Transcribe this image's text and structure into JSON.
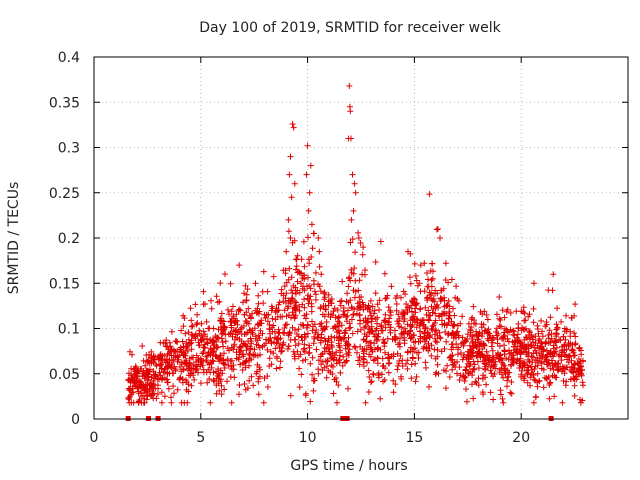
{
  "chart_data": {
    "type": "scatter",
    "title": "Day 100 of 2019, SRMTID for receiver welk",
    "xlabel": "GPS time / hours",
    "ylabel": "SRMTID / TECUs",
    "xlim": [
      0,
      25
    ],
    "ylim": [
      0,
      0.4
    ],
    "xticks": [
      0,
      5,
      10,
      15,
      20
    ],
    "xtick_labels": [
      "0",
      "5",
      "10",
      "15",
      "20"
    ],
    "yticks": [
      0,
      0.05,
      0.1,
      0.15,
      0.2,
      0.25,
      0.3,
      0.35,
      0.4
    ],
    "ytick_labels": [
      "0",
      "0.05",
      "0.1",
      "0.15",
      "0.2",
      "0.25",
      "0.3",
      "0.35",
      "0.4"
    ],
    "grid": true,
    "marker": "plus",
    "color": "#e00000",
    "generation_seed": 20190410,
    "points_per_hour": 110,
    "x_range": [
      1.6,
      22.9
    ],
    "trend": [
      [
        1.6,
        0.035
      ],
      [
        2.5,
        0.045
      ],
      [
        3.5,
        0.058
      ],
      [
        4.5,
        0.068
      ],
      [
        5.5,
        0.078
      ],
      [
        6.5,
        0.09
      ],
      [
        7.5,
        0.088
      ],
      [
        8.5,
        0.095
      ],
      [
        9.3,
        0.11
      ],
      [
        10.0,
        0.105
      ],
      [
        10.7,
        0.095
      ],
      [
        11.5,
        0.08
      ],
      [
        12.0,
        0.11
      ],
      [
        12.7,
        0.095
      ],
      [
        13.5,
        0.085
      ],
      [
        14.5,
        0.09
      ],
      [
        15.5,
        0.1
      ],
      [
        16.3,
        0.105
      ],
      [
        17.2,
        0.08
      ],
      [
        18.5,
        0.07
      ],
      [
        20.0,
        0.075
      ],
      [
        21.0,
        0.07
      ],
      [
        21.8,
        0.075
      ],
      [
        22.9,
        0.06
      ]
    ],
    "spikes": [
      {
        "x": 9.3,
        "y": 0.326
      },
      {
        "x": 9.35,
        "y": 0.322
      },
      {
        "x": 9.2,
        "y": 0.29
      },
      {
        "x": 9.15,
        "y": 0.27
      },
      {
        "x": 9.4,
        "y": 0.26
      },
      {
        "x": 9.25,
        "y": 0.245
      },
      {
        "x": 9.1,
        "y": 0.22
      },
      {
        "x": 9.2,
        "y": 0.2
      },
      {
        "x": 9.0,
        "y": 0.185
      },
      {
        "x": 10.0,
        "y": 0.302
      },
      {
        "x": 10.15,
        "y": 0.28
      },
      {
        "x": 9.95,
        "y": 0.27
      },
      {
        "x": 10.1,
        "y": 0.25
      },
      {
        "x": 10.05,
        "y": 0.23
      },
      {
        "x": 10.2,
        "y": 0.215
      },
      {
        "x": 10.3,
        "y": 0.205
      },
      {
        "x": 10.5,
        "y": 0.2
      },
      {
        "x": 10.55,
        "y": 0.185
      },
      {
        "x": 11.95,
        "y": 0.368
      },
      {
        "x": 11.98,
        "y": 0.345
      },
      {
        "x": 12.0,
        "y": 0.34
      },
      {
        "x": 11.92,
        "y": 0.31
      },
      {
        "x": 12.03,
        "y": 0.31
      },
      {
        "x": 12.1,
        "y": 0.27
      },
      {
        "x": 12.2,
        "y": 0.26
      },
      {
        "x": 12.25,
        "y": 0.25
      },
      {
        "x": 12.15,
        "y": 0.23
      },
      {
        "x": 12.05,
        "y": 0.22
      },
      {
        "x": 12.4,
        "y": 0.2
      },
      {
        "x": 12.6,
        "y": 0.19
      },
      {
        "x": 16.1,
        "y": 0.21
      },
      {
        "x": 16.2,
        "y": 0.2
      },
      {
        "x": 14.7,
        "y": 0.185
      },
      {
        "x": 15.3,
        "y": 0.17
      },
      {
        "x": 6.8,
        "y": 0.17
      },
      {
        "x": 21.5,
        "y": 0.16
      },
      {
        "x": 20.6,
        "y": 0.15
      },
      {
        "x": 5.3,
        "y": 0.04
      }
    ],
    "bursts": [
      {
        "x_min": 8.9,
        "x_max": 10.6,
        "extra_amp": 0.06
      },
      {
        "x_min": 11.9,
        "x_max": 12.6,
        "extra_amp": 0.07
      },
      {
        "x_min": 14.5,
        "x_max": 16.6,
        "extra_amp": 0.04
      }
    ],
    "gap_markers_x": [
      1.6,
      2.55,
      3.0,
      11.65,
      11.85,
      21.4
    ]
  }
}
